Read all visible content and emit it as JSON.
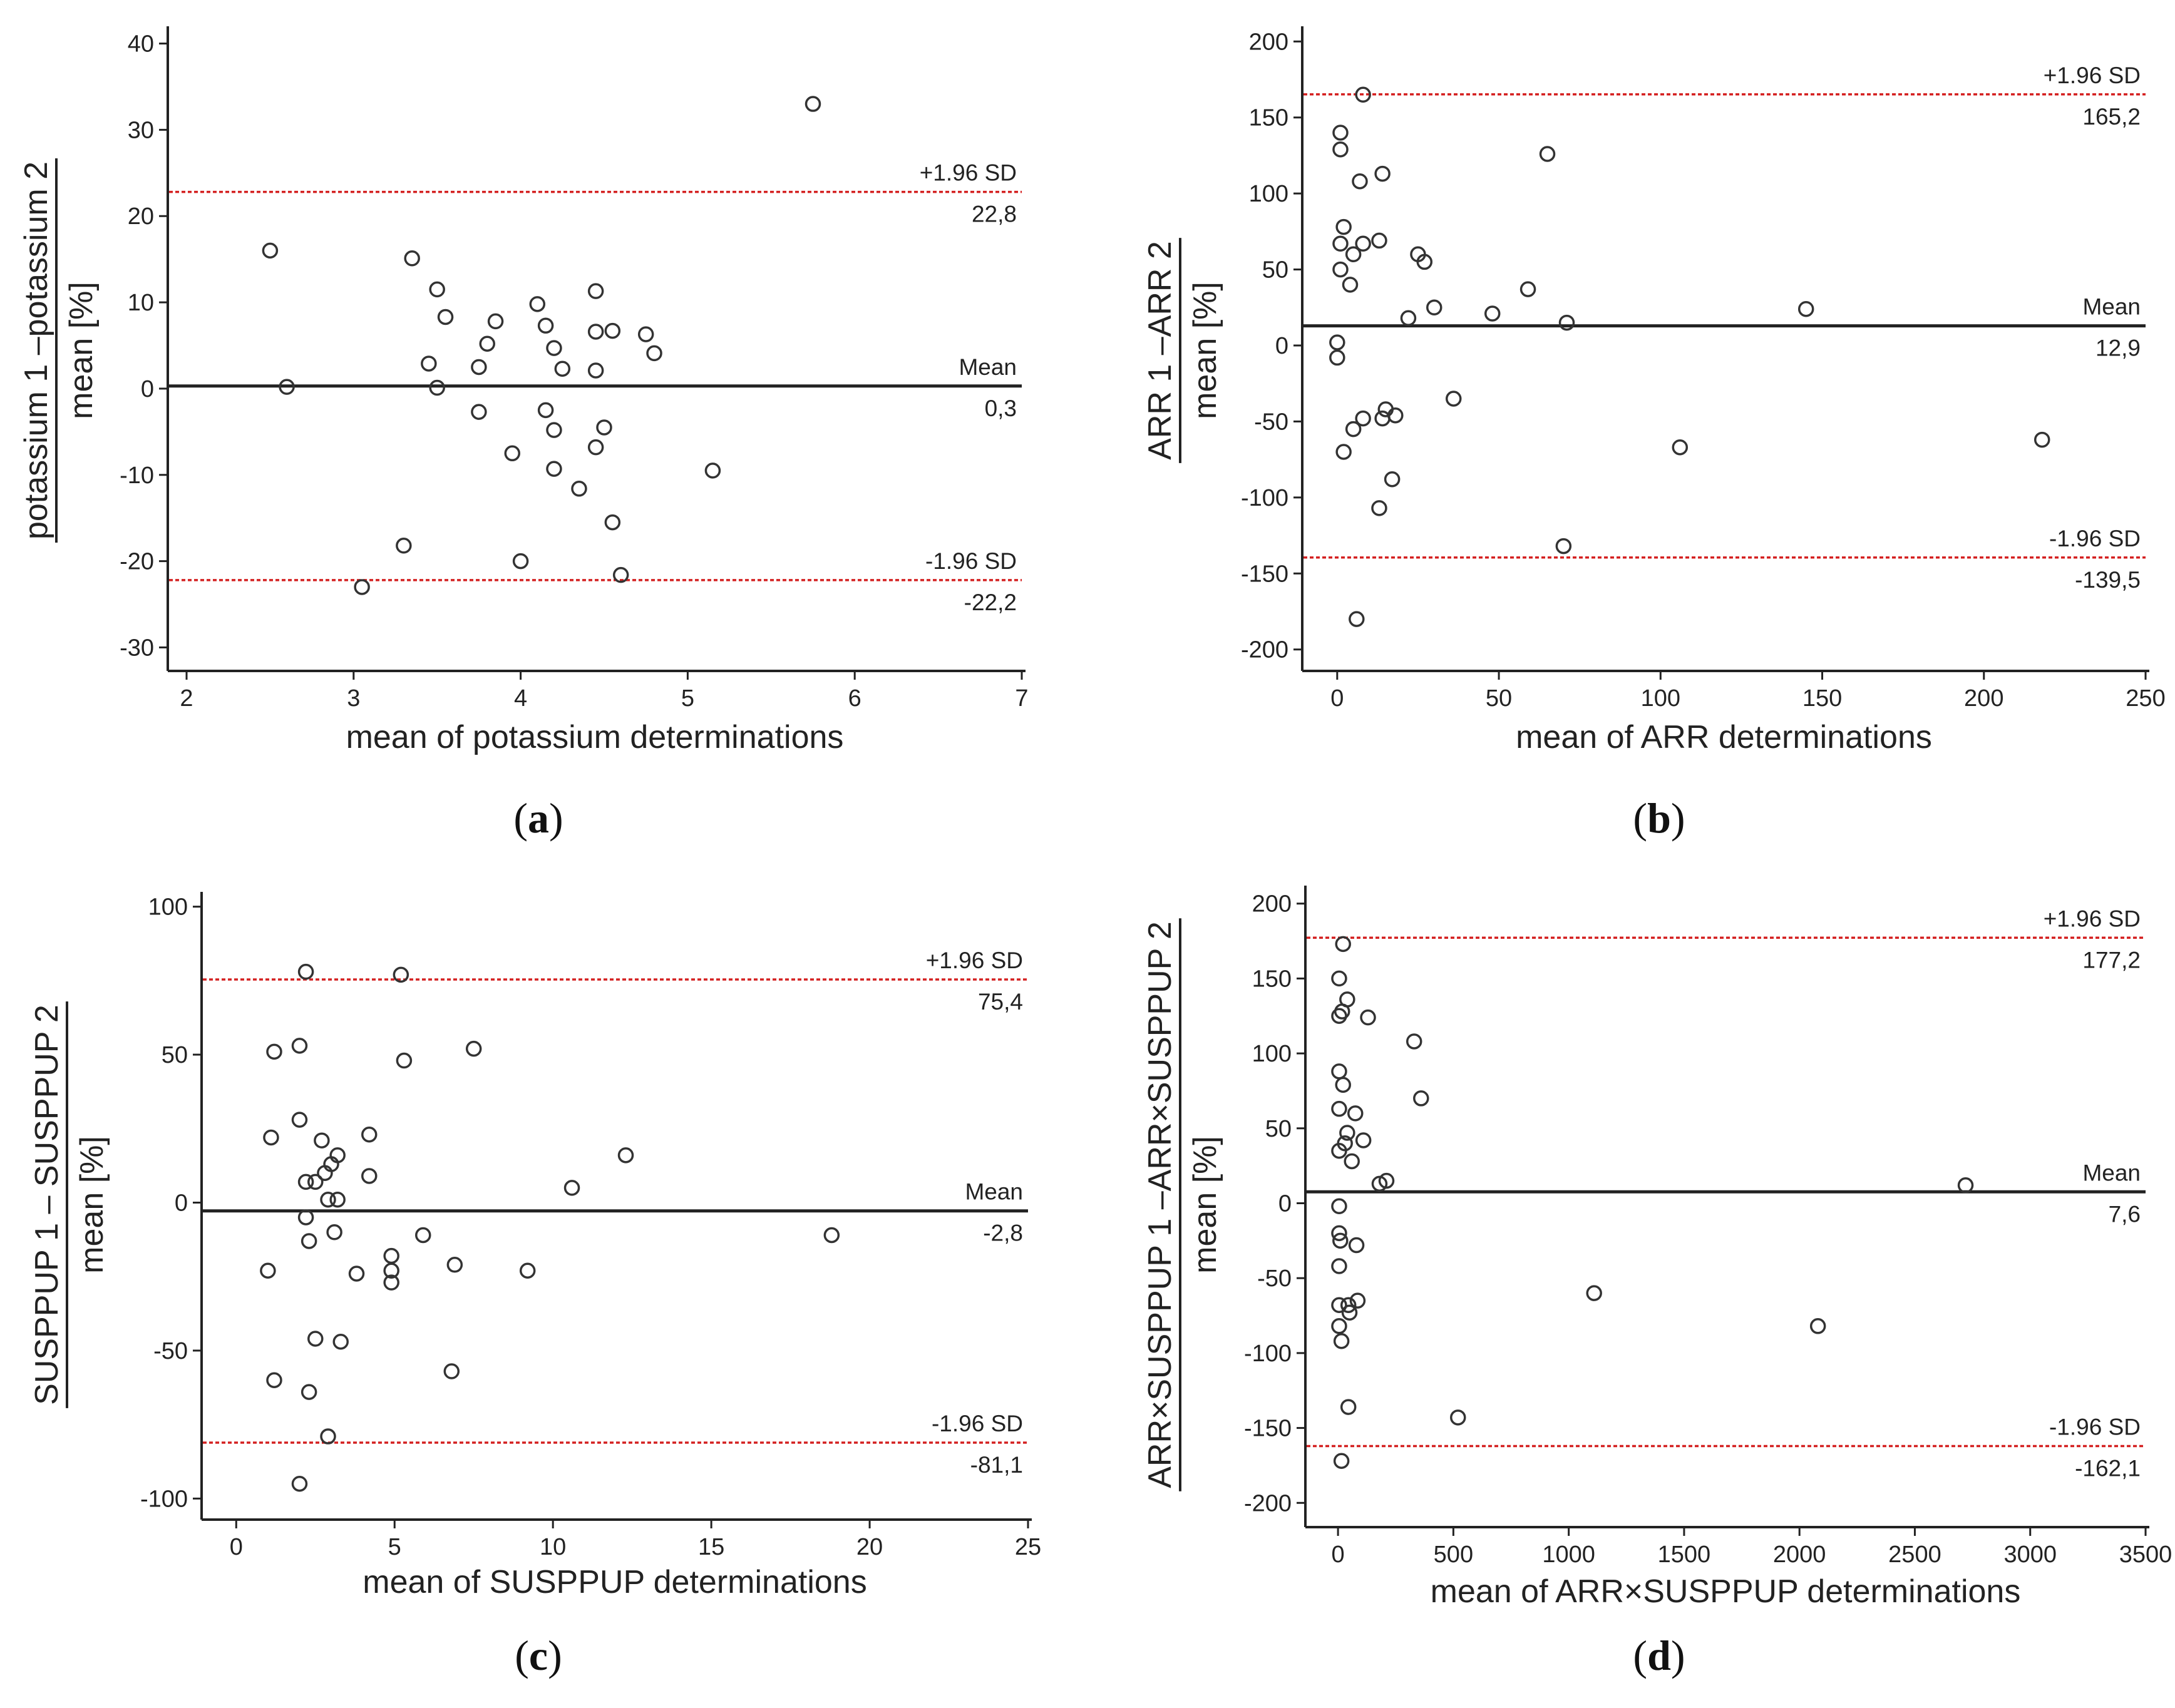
{
  "chart_data": [
    {
      "type": "scatter",
      "panel_label": "a",
      "xlabel": "mean of potassium determinations",
      "ylabel_numerator": "potassium 1 –potassium 2",
      "ylabel_denominator": "mean [%]",
      "xlim": [
        2,
        7
      ],
      "ylim": [
        -32,
        42
      ],
      "xticks": [
        2,
        3,
        4,
        5,
        6,
        7
      ],
      "yticks": [
        -30,
        -20,
        -10,
        0,
        10,
        20,
        30,
        40
      ],
      "xtick_labels": [
        "2",
        "3",
        "4",
        "5",
        "6",
        "7"
      ],
      "ytick_labels": [
        "-30",
        "-20",
        "-10",
        "0",
        "10",
        "20",
        "30",
        "40"
      ],
      "mean": {
        "value": 0.3,
        "label": "Mean",
        "value_label": "0,3"
      },
      "upper": {
        "value": 22.8,
        "label": "+1.96 SD",
        "value_label": "22,8"
      },
      "lower": {
        "value": -22.2,
        "label": "-1.96 SD",
        "value_label": "-22,2"
      },
      "points": [
        [
          2.5,
          16
        ],
        [
          2.6,
          0.2
        ],
        [
          3.05,
          -23
        ],
        [
          3.3,
          -18.2
        ],
        [
          3.35,
          15.1
        ],
        [
          3.45,
          2.9
        ],
        [
          3.5,
          11.5
        ],
        [
          3.5,
          0.1
        ],
        [
          3.55,
          8.3
        ],
        [
          3.75,
          2.5
        ],
        [
          3.75,
          -2.7
        ],
        [
          3.8,
          5.2
        ],
        [
          3.85,
          7.8
        ],
        [
          3.95,
          -7.5
        ],
        [
          4.0,
          -20
        ],
        [
          4.1,
          9.8
        ],
        [
          4.15,
          7.3
        ],
        [
          4.15,
          -2.5
        ],
        [
          4.2,
          4.7
        ],
        [
          4.2,
          -4.8
        ],
        [
          4.2,
          -9.3
        ],
        [
          4.25,
          2.3
        ],
        [
          4.35,
          -11.6
        ],
        [
          4.45,
          11.3
        ],
        [
          4.45,
          6.6
        ],
        [
          4.45,
          2.1
        ],
        [
          4.45,
          -6.8
        ],
        [
          4.5,
          -4.5
        ],
        [
          4.55,
          6.7
        ],
        [
          4.55,
          -15.5
        ],
        [
          4.6,
          -21.6
        ],
        [
          4.75,
          6.3
        ],
        [
          4.8,
          4.1
        ],
        [
          5.15,
          -9.5
        ],
        [
          5.75,
          33
        ]
      ]
    },
    {
      "type": "scatter",
      "panel_label": "b",
      "xlabel": "mean of ARR determinations",
      "ylabel_numerator": "ARR 1 –ARR 2",
      "ylabel_denominator": "mean [%]",
      "xlim": [
        -5,
        250
      ],
      "ylim": [
        -210,
        210
      ],
      "xticks": [
        0,
        50,
        100,
        150,
        200,
        250
      ],
      "yticks": [
        -200,
        -150,
        -100,
        -50,
        0,
        50,
        100,
        150,
        200
      ],
      "xtick_labels": [
        "0",
        "50",
        "100",
        "150",
        "200",
        "250"
      ],
      "ytick_labels": [
        "-200",
        "-150",
        "-100",
        "-50",
        "0",
        "50",
        "100",
        "150",
        "200"
      ],
      "mean": {
        "value": 12.9,
        "label": "Mean",
        "value_label": "12,9"
      },
      "upper": {
        "value": 165.2,
        "label": "+1.96 SD",
        "value_label": "165,2"
      },
      "lower": {
        "value": -139.5,
        "label": "-1.96 SD",
        "value_label": "-139,5"
      },
      "points": [
        [
          0,
          2
        ],
        [
          0,
          -8
        ],
        [
          1,
          67
        ],
        [
          1,
          50
        ],
        [
          1,
          140
        ],
        [
          1,
          129
        ],
        [
          2,
          78
        ],
        [
          2,
          -70
        ],
        [
          4,
          40
        ],
        [
          5,
          60
        ],
        [
          5,
          -55
        ],
        [
          6,
          -180
        ],
        [
          7,
          108
        ],
        [
          8,
          -48
        ],
        [
          8,
          165
        ],
        [
          8,
          67
        ],
        [
          13,
          69
        ],
        [
          13,
          -107
        ],
        [
          14,
          113
        ],
        [
          14,
          -48
        ],
        [
          15,
          -42
        ],
        [
          17,
          -88
        ],
        [
          18,
          -46
        ],
        [
          22,
          18
        ],
        [
          25,
          60
        ],
        [
          27,
          55
        ],
        [
          30,
          25
        ],
        [
          36,
          -35
        ],
        [
          48,
          21
        ],
        [
          59,
          37
        ],
        [
          65,
          126
        ],
        [
          70,
          -132
        ],
        [
          71,
          15
        ],
        [
          106,
          -67
        ],
        [
          145,
          24
        ],
        [
          218,
          -62
        ]
      ]
    },
    {
      "type": "scatter",
      "panel_label": "c",
      "xlabel": "mean of SUSPPUP determinations",
      "ylabel_numerator": "SUSPPUP 1 – SUSPPUP 2",
      "ylabel_denominator": "mean [%]",
      "xlim": [
        -0.5,
        25
      ],
      "ylim": [
        -105,
        105
      ],
      "xticks": [
        0,
        5,
        10,
        15,
        20,
        25
      ],
      "yticks": [
        -100,
        -50,
        0,
        50,
        100
      ],
      "xtick_labels": [
        "0",
        "5",
        "10",
        "15",
        "20",
        "25"
      ],
      "ytick_labels": [
        "-100",
        "-50",
        "0",
        "50",
        "100"
      ],
      "mean": {
        "value": -2.8,
        "label": "Mean",
        "value_label": "-2,8"
      },
      "upper": {
        "value": 75.4,
        "label": "+1.96 SD",
        "value_label": "75,4"
      },
      "lower": {
        "value": -81.1,
        "label": "-1.96 SD",
        "value_label": "-81,1"
      },
      "points": [
        [
          1.0,
          -23
        ],
        [
          1.1,
          22
        ],
        [
          1.2,
          51
        ],
        [
          1.2,
          -60
        ],
        [
          2.0,
          53
        ],
        [
          2.0,
          28
        ],
        [
          2.0,
          -95
        ],
        [
          2.2,
          78
        ],
        [
          2.2,
          7
        ],
        [
          2.2,
          -5
        ],
        [
          2.3,
          -13
        ],
        [
          2.3,
          -64
        ],
        [
          2.5,
          7
        ],
        [
          2.5,
          -46
        ],
        [
          2.7,
          21
        ],
        [
          2.8,
          10
        ],
        [
          2.9,
          1
        ],
        [
          2.9,
          -79
        ],
        [
          3.0,
          13
        ],
        [
          3.1,
          -10
        ],
        [
          3.2,
          16
        ],
        [
          3.2,
          1
        ],
        [
          3.3,
          -47
        ],
        [
          3.8,
          -24
        ],
        [
          4.2,
          23
        ],
        [
          4.2,
          9
        ],
        [
          4.9,
          -18
        ],
        [
          4.9,
          -23
        ],
        [
          4.9,
          -27
        ],
        [
          5.2,
          77
        ],
        [
          5.3,
          48
        ],
        [
          5.9,
          -11
        ],
        [
          6.8,
          -57
        ],
        [
          6.9,
          -21
        ],
        [
          7.5,
          52
        ],
        [
          9.2,
          -23
        ],
        [
          10.6,
          5
        ],
        [
          12.3,
          16
        ],
        [
          18.8,
          -11
        ]
      ]
    },
    {
      "type": "scatter",
      "panel_label": "d",
      "xlabel": "mean of ARR×SUSPPUP determinations",
      "ylabel_numerator": "ARR×SUSPPUP 1 –ARR×SUSPPUP 2",
      "ylabel_denominator": "mean [%]",
      "xlim": [
        -60,
        3500
      ],
      "ylim": [
        -212,
        212
      ],
      "xticks": [
        0,
        500,
        1000,
        1500,
        2000,
        2500,
        3000,
        3500
      ],
      "yticks": [
        -200,
        -150,
        -100,
        -50,
        0,
        50,
        100,
        150,
        200
      ],
      "xtick_labels": [
        "0",
        "500",
        "1000",
        "1500",
        "2000",
        "2500",
        "3000",
        "3500"
      ],
      "ytick_labels": [
        "-200",
        "-150",
        "-100",
        "-50",
        "0",
        "50",
        "100",
        "150",
        "200"
      ],
      "mean": {
        "value": 7.6,
        "label": "Mean",
        "value_label": "7,6"
      },
      "upper": {
        "value": 177.2,
        "label": "+1.96 SD",
        "value_label": "177,2"
      },
      "lower": {
        "value": -162.1,
        "label": "-1.96 SD",
        "value_label": "-162,1"
      },
      "points": [
        [
          5,
          150
        ],
        [
          5,
          125
        ],
        [
          5,
          88
        ],
        [
          5,
          63
        ],
        [
          5,
          35
        ],
        [
          5,
          -2
        ],
        [
          5,
          -20
        ],
        [
          5,
          -42
        ],
        [
          5,
          -68
        ],
        [
          5,
          -82
        ],
        [
          10,
          -25
        ],
        [
          15,
          -92
        ],
        [
          15,
          -172
        ],
        [
          18,
          128
        ],
        [
          22,
          79
        ],
        [
          22,
          173
        ],
        [
          30,
          40
        ],
        [
          40,
          136
        ],
        [
          40,
          47
        ],
        [
          45,
          -68
        ],
        [
          45,
          -136
        ],
        [
          50,
          -73
        ],
        [
          60,
          28
        ],
        [
          75,
          60
        ],
        [
          80,
          -28
        ],
        [
          85,
          -65
        ],
        [
          110,
          42
        ],
        [
          130,
          124
        ],
        [
          180,
          13
        ],
        [
          210,
          15
        ],
        [
          330,
          108
        ],
        [
          360,
          70
        ],
        [
          520,
          -143
        ],
        [
          1110,
          -60
        ],
        [
          2080,
          -82
        ],
        [
          2720,
          12
        ]
      ]
    }
  ]
}
